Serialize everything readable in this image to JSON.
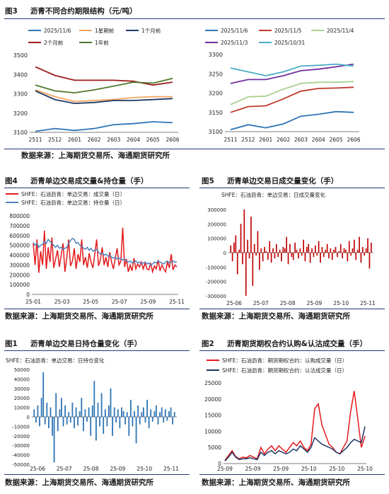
{
  "panels": {
    "fig3": {
      "number": "图3",
      "title": "沥青不同合约期限结构（元/吨）",
      "source": "数据来源：上海期货交易所、海通期货研究所"
    },
    "fig4": {
      "number": "图4",
      "title": "沥青单边交易成交量&持仓量（手）",
      "source": "数据来源：上海期货交易所、海通期货研究所"
    },
    "fig5": {
      "number": "图5",
      "title": "沥青单边交易日成交量变化（手）",
      "source": "数据来源：上海期货交易所、海通期货研究所"
    },
    "fig1": {
      "number": "图1",
      "title": "沥青单边交易日持仓量变化（手）",
      "source": "数据来源：上海期货交易所、海通期货研究所"
    },
    "fig2": {
      "number": "图2",
      "title": "沥青期货期权合约认购&认沽成交量（手）",
      "source": "数据来源：上海期货交易所、海通期货研究所"
    }
  },
  "chart_data": [
    {
      "id": "fig3-left",
      "type": "line",
      "categories": [
        "2511",
        "2512",
        "2601",
        "2602",
        "2603",
        "2604",
        "2605",
        "2606"
      ],
      "ylim": [
        3100,
        3500
      ],
      "yticks": [
        3100,
        3200,
        3300,
        3400,
        3500
      ],
      "grid": false,
      "legend_placement": "top",
      "series": [
        {
          "name": "2025/11/6",
          "color": "#2e75b6",
          "values": [
            3105,
            3120,
            3110,
            3120,
            3140,
            3145,
            3155,
            3150
          ]
        },
        {
          "name": "1星期前",
          "color": "#f4a460",
          "values": [
            3320,
            3285,
            3260,
            3265,
            3270,
            3280,
            3285,
            3285
          ]
        },
        {
          "name": "1个月前",
          "color": "#1f3864",
          "values": [
            3315,
            3270,
            3250,
            3255,
            3265,
            3265,
            3270,
            3275
          ]
        },
        {
          "name": "2个月前",
          "color": "#9e1b1b",
          "values": [
            3440,
            3395,
            3370,
            3370,
            3370,
            3365,
            3345,
            3360
          ]
        },
        {
          "name": "1年前",
          "color": "#4e7a2a",
          "values": [
            3345,
            3315,
            3305,
            3320,
            3340,
            3360,
            3355,
            3380
          ]
        }
      ]
    },
    {
      "id": "fig3-right",
      "type": "line",
      "categories": [
        "2511",
        "2512",
        "2601",
        "2602",
        "2603",
        "2604",
        "2605",
        "2606"
      ],
      "ylim": [
        3100,
        3300
      ],
      "yticks": [
        3100,
        3150,
        3200,
        3250,
        3300
      ],
      "grid": false,
      "legend_placement": "top",
      "series": [
        {
          "name": "2025/11/6",
          "color": "#2e75b6",
          "values": [
            3105,
            3118,
            3110,
            3120,
            3140,
            3145,
            3152,
            3150
          ]
        },
        {
          "name": "2025/11/5",
          "color": "#c0392b",
          "values": [
            3150,
            3165,
            3167,
            3185,
            3205,
            3212,
            3213,
            3215
          ]
        },
        {
          "name": "2025/11/4",
          "color": "#a9d08e",
          "values": [
            3170,
            3190,
            3192,
            3210,
            3225,
            3228,
            3228,
            3230
          ]
        },
        {
          "name": "2025/11/3",
          "color": "#7030a0",
          "values": [
            3225,
            3235,
            3235,
            3245,
            3258,
            3262,
            3268,
            3275
          ]
        },
        {
          "name": "2025/10/31",
          "color": "#4bacc6",
          "values": [
            3265,
            3255,
            3245,
            3255,
            3270,
            3272,
            3275,
            3270
          ]
        }
      ]
    },
    {
      "id": "fig4",
      "type": "line",
      "ylim": [
        0,
        800000
      ],
      "yticks": [
        0,
        100000,
        200000,
        300000,
        400000,
        500000,
        600000,
        700000,
        800000
      ],
      "x_ticks": [
        "25-01",
        "25-03",
        "25-05",
        "25-07",
        "25-09",
        "25-11"
      ],
      "grid": false,
      "legend_placement": "top-left",
      "series": [
        {
          "name": "SHFE：石油沥青：单边交易：成交量（日）",
          "color": "#e31a1c",
          "values": [
            520000,
            300000,
            560000,
            220000,
            440000,
            300000,
            650000,
            260000,
            480000,
            330000,
            580000,
            270000,
            360000,
            450000,
            280000,
            400000,
            520000,
            230000,
            380000,
            560000,
            290000,
            340000,
            470000,
            260000,
            410000,
            330000,
            560000,
            300000,
            380000,
            270000,
            420000,
            330000,
            270000,
            410000,
            560000,
            290000,
            350000,
            480000,
            300000,
            380000,
            280000,
            430000,
            330000,
            260000,
            370000,
            470000,
            300000,
            340000,
            680000,
            280000,
            360000,
            230000,
            300000,
            240000,
            370000,
            260000,
            310000,
            280000,
            330000,
            260000,
            320000,
            260000,
            250000,
            320000,
            230000,
            290000,
            260000,
            350000,
            240000,
            300000,
            260000,
            230000,
            330000,
            270000,
            410000,
            250000,
            300000,
            280000
          ]
        },
        {
          "name": "SHFE：石油沥青：单边交易：持仓量（日）",
          "color": "#4f81bd",
          "values": [
            530000,
            500000,
            520000,
            480000,
            500000,
            510000,
            540000,
            520000,
            560000,
            540000,
            520000,
            500000,
            480000,
            500000,
            470000,
            480000,
            460000,
            470000,
            480000,
            520000,
            550000,
            570000,
            560000,
            520000,
            530000,
            500000,
            490000,
            470000,
            460000,
            480000,
            450000,
            470000,
            440000,
            450000,
            460000,
            430000,
            410000,
            420000,
            400000,
            410000,
            390000,
            400000,
            380000,
            370000,
            380000,
            360000,
            370000,
            360000,
            350000,
            360000,
            340000,
            330000,
            340000,
            320000,
            330000,
            340000,
            320000,
            330000,
            310000,
            320000,
            330000,
            310000,
            320000,
            300000,
            310000,
            330000,
            320000,
            340000,
            330000,
            320000,
            310000,
            330000,
            340000,
            320000,
            330000,
            340000,
            330000,
            330000
          ]
        }
      ]
    },
    {
      "id": "fig5",
      "type": "bar",
      "ylim": [
        -300000,
        300000
      ],
      "yticks": [
        -300000,
        -200000,
        -100000,
        0,
        100000,
        200000,
        300000
      ],
      "x_ticks": [
        "25-06",
        "25-07",
        "25-08",
        "25-09",
        "25-10",
        "25-11"
      ],
      "grid": false,
      "legend_placement": "top-left",
      "series": [
        {
          "name": "SHFE：石油沥青：单边交易：日成交量变化",
          "color": "#c00000",
          "values": [
            50000,
            -60000,
            70000,
            120000,
            -150000,
            20000,
            200000,
            -80000,
            300000,
            -300000,
            90000,
            -40000,
            250000,
            -230000,
            60000,
            -20000,
            150000,
            -120000,
            30000,
            -60000,
            40000,
            10000,
            -50000,
            80000,
            -70000,
            30000,
            -40000,
            60000,
            -30000,
            20000,
            -60000,
            40000,
            30000,
            110000,
            -80000,
            60000,
            -30000,
            -50000,
            70000,
            20000,
            -40000,
            30000,
            -20000,
            90000,
            -60000,
            40000,
            60000,
            -70000,
            30000,
            -30000,
            50000,
            -20000,
            80000,
            -70000,
            40000,
            -30000,
            20000,
            60000,
            -40000,
            30000,
            -50000,
            20000,
            40000,
            -30000,
            10000,
            60000,
            -40000,
            30000,
            20000,
            -60000,
            80000,
            -20000,
            30000,
            90000,
            -50000,
            20000,
            110000,
            -70000,
            40000,
            -20000,
            30000,
            100000,
            -110000,
            70000
          ]
        }
      ]
    },
    {
      "id": "fig1",
      "type": "bar",
      "ylim": [
        -50000,
        50000
      ],
      "yticks": [
        -50000,
        -40000,
        -30000,
        -20000,
        -10000,
        0,
        10000,
        20000,
        30000,
        40000,
        50000
      ],
      "x_ticks": [
        "25-06",
        "25-07",
        "25-08",
        "25-09",
        "25-10",
        "25-11"
      ],
      "grid": false,
      "legend_placement": "top-left",
      "series": [
        {
          "name": "SHFE：石油沥青：单边交易：日持仓变化",
          "color": "#2e75b6",
          "values": [
            8000,
            -6000,
            12000,
            -10000,
            20000,
            47000,
            -8000,
            15000,
            -12000,
            10000,
            -20000,
            -48000,
            25000,
            -15000,
            8000,
            20000,
            -10000,
            12000,
            -8000,
            5000,
            -6000,
            15000,
            -12000,
            10000,
            -9000,
            6000,
            20000,
            -15000,
            8000,
            -5000,
            10000,
            -20000,
            12000,
            38000,
            -25000,
            15000,
            -10000,
            25000,
            -18000,
            8000,
            -10000,
            12000,
            30000,
            -20000,
            10000,
            -6000,
            8000,
            -12000,
            10000,
            6000,
            -8000,
            5000,
            -20000,
            18000,
            -10000,
            6000,
            -28000,
            12000,
            -8000,
            5000,
            10000,
            -6000,
            18000,
            -12000,
            8000,
            -5000,
            6000,
            12000,
            -8000,
            5000,
            10000,
            -6000,
            8000,
            -4000,
            6000,
            10000,
            -8000,
            5000
          ]
        }
      ]
    },
    {
      "id": "fig2",
      "type": "line",
      "ylim": [
        0,
        25000
      ],
      "yticks": [
        0,
        5000,
        10000,
        15000,
        20000,
        25000
      ],
      "x_ticks": [
        "25-09",
        "25-09",
        "25-09",
        "25-10",
        "25-10",
        "25-10"
      ],
      "grid": false,
      "legend_placement": "top-left",
      "series": [
        {
          "name": "SHFE：石油沥青：期货期权合约：认购成交量（日）",
          "color": "#e31a1c",
          "values": [
            1000,
            2500,
            4000,
            2200,
            1500,
            2000,
            1800,
            2500,
            2000,
            1500,
            5000,
            3000,
            4500,
            5500,
            4000,
            5500,
            4500,
            3500,
            5000,
            6500,
            5500,
            7000,
            5000,
            4000,
            6000,
            17000,
            18500,
            12000,
            9000,
            6000,
            5000,
            3500,
            3000,
            5000,
            7000,
            16000,
            22500,
            14000,
            5000,
            8500
          ]
        },
        {
          "name": "SHFE：石油沥青：期货期权合约：认沽成交量（日）",
          "color": "#1f3864",
          "values": [
            800,
            2000,
            3500,
            2000,
            1200,
            1500,
            1500,
            1800,
            1500,
            1200,
            3500,
            2500,
            3500,
            4000,
            3000,
            4000,
            3500,
            3000,
            3500,
            4500,
            4000,
            5500,
            4500,
            3500,
            5000,
            8000,
            7000,
            6000,
            5500,
            5000,
            4500,
            3500,
            3000,
            4000,
            5000,
            6500,
            7500,
            7000,
            6500,
            11500
          ]
        }
      ]
    }
  ]
}
